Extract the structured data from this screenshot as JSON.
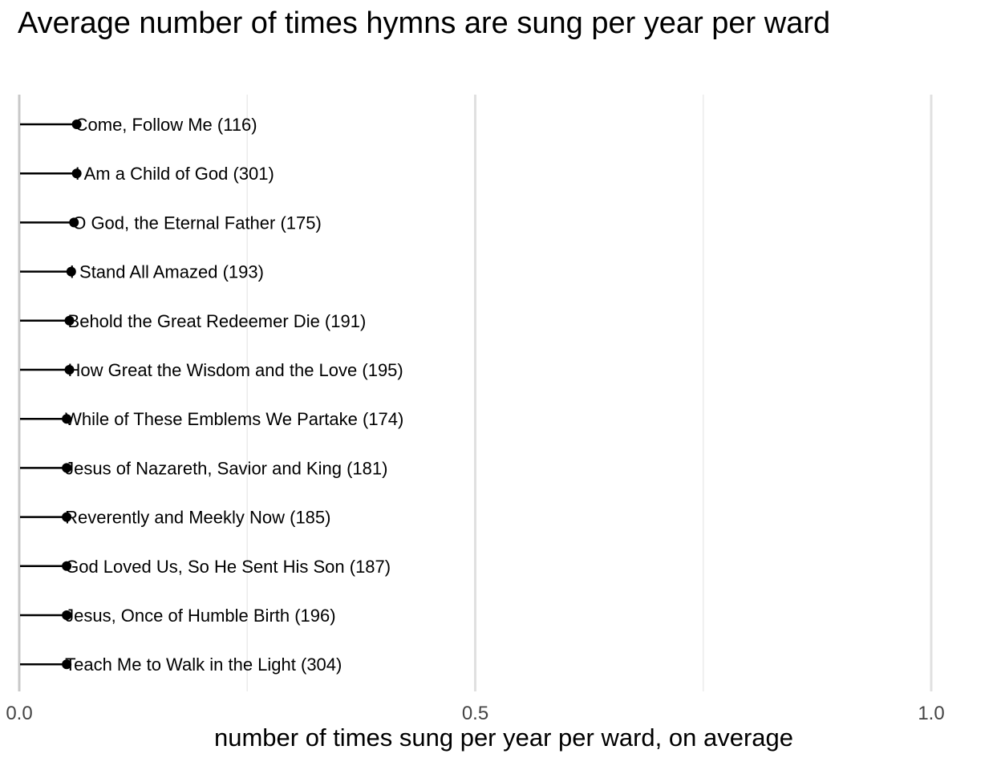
{
  "chart_data": {
    "type": "lollipop",
    "title": "Average number of times hymns are sung per year per ward",
    "xlabel": "number of times sung per year per ward, on average",
    "ylabel": "",
    "xlim": [
      0,
      1
    ],
    "x_ticks": [
      {
        "value": 0.0,
        "label": "0.0"
      },
      {
        "value": 0.5,
        "label": "0.5"
      },
      {
        "value": 1.0,
        "label": "1.0"
      }
    ],
    "minor_gridlines": [
      0.25,
      0.75
    ],
    "grid": true,
    "items": [
      {
        "label": "Come, Follow Me (116)",
        "value": 0.063
      },
      {
        "label": "I Am a Child of God (301)",
        "value": 0.063
      },
      {
        "label": "O God, the Eternal Father (175)",
        "value": 0.06
      },
      {
        "label": "I Stand All Amazed (193)",
        "value": 0.057
      },
      {
        "label": "Behold the Great Redeemer Die (191)",
        "value": 0.055
      },
      {
        "label": "How Great the Wisdom and the Love (195)",
        "value": 0.055
      },
      {
        "label": "While of These Emblems We Partake (174)",
        "value": 0.052
      },
      {
        "label": "Jesus of Nazareth, Savior and King (181)",
        "value": 0.052
      },
      {
        "label": "Reverently and Meekly Now (185)",
        "value": 0.052
      },
      {
        "label": "God Loved Us, So He Sent His Son (187)",
        "value": 0.052
      },
      {
        "label": "Jesus, Once of Humble Birth (196)",
        "value": 0.052
      },
      {
        "label": "Teach Me to Walk in the Light (304)",
        "value": 0.052
      }
    ]
  }
}
